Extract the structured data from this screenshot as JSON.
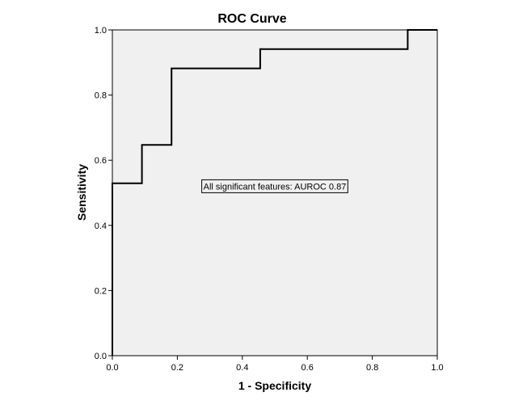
{
  "chart_data": {
    "type": "line",
    "title": "ROC Curve",
    "xlabel": "1 - Specificity",
    "ylabel": "Sensitivity",
    "xlim": [
      0,
      1
    ],
    "ylim": [
      0,
      1
    ],
    "xticks": [
      "0.0",
      "0.2",
      "0.4",
      "0.6",
      "0.8",
      "1.0"
    ],
    "yticks": [
      "0.0",
      "0.2",
      "0.4",
      "0.6",
      "0.8",
      "1.0"
    ],
    "grid": false,
    "plot_background": "#f0f0f0",
    "line_color": "#000000",
    "series": [
      {
        "x": [
          0.0,
          0.0,
          0.091,
          0.091,
          0.182,
          0.182,
          0.455,
          0.455,
          0.909,
          0.909,
          1.0
        ],
        "y": [
          0.0,
          0.529,
          0.529,
          0.647,
          0.647,
          0.882,
          0.882,
          0.941,
          0.941,
          1.0,
          1.0
        ]
      }
    ],
    "annotations": [
      {
        "text": "All significant features: AUROC 0.87",
        "x": 0.5,
        "y": 0.52
      }
    ]
  }
}
